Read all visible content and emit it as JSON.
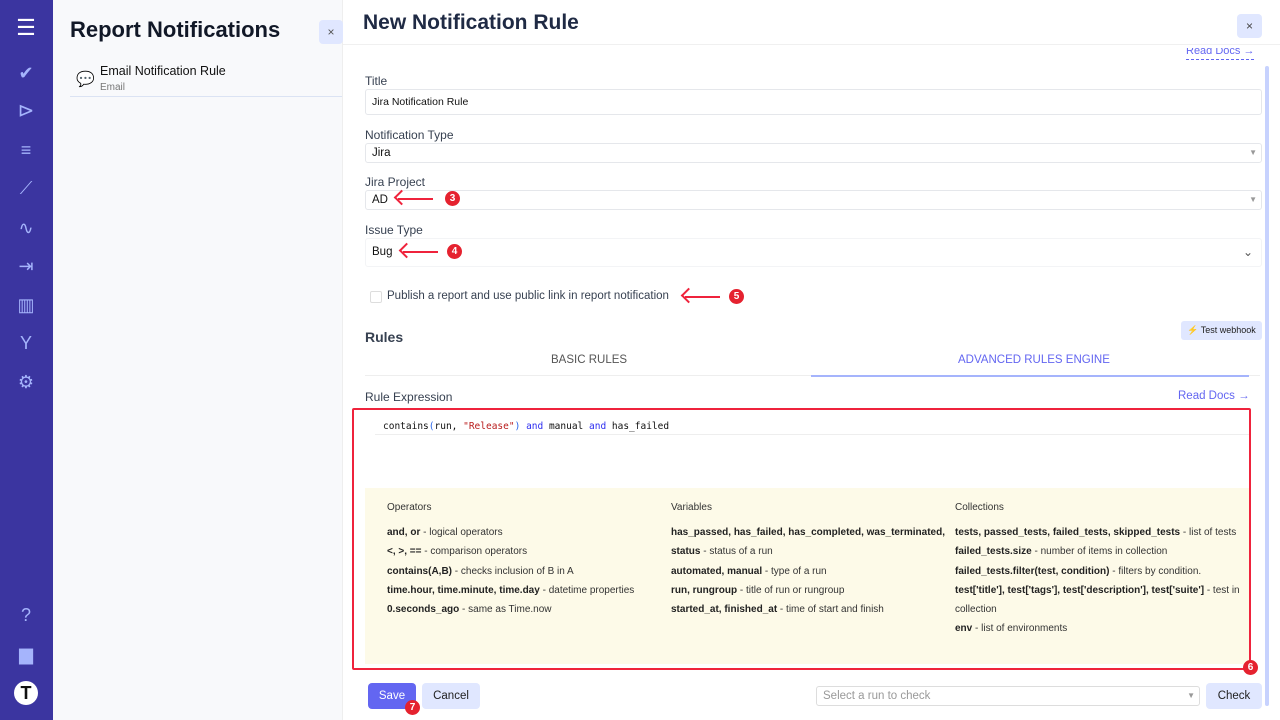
{
  "sidebar": {
    "icons": [
      "menu-icon",
      "check-icon",
      "play-icon",
      "list-check-icon",
      "steps-icon",
      "pulse-icon",
      "import-icon",
      "chart-icon",
      "branch-icon",
      "gear-icon",
      "help-icon",
      "folder-icon",
      "logo-icon"
    ]
  },
  "left_panel": {
    "title": "Report Notifications",
    "close": "×",
    "items": [
      {
        "title": "Email Notification Rule",
        "subtitle": "Email"
      }
    ]
  },
  "header": {
    "title": "New Notification Rule",
    "close": "×",
    "read_docs_top": "Read Docs →"
  },
  "form": {
    "title_label": "Title",
    "title_value": "Jira Notification Rule",
    "type_label": "Notification Type",
    "type_value": "Jira",
    "project_label": "Jira Project",
    "project_value": "AD",
    "issue_label": "Issue Type",
    "issue_value": "Bug",
    "publish_label": "Publish a report and use public link in report notification",
    "publish_checked": false
  },
  "rules": {
    "title": "Rules",
    "test_webhook": "Test webhook",
    "tabs": [
      {
        "label": "BASIC RULES",
        "active": false
      },
      {
        "label": "ADVANCED RULES ENGINE",
        "active": true
      }
    ],
    "expression_label": "Rule Expression",
    "read_docs": "Read Docs →",
    "code": {
      "fn": "contains",
      "p1": "(",
      "arg": "run, ",
      "str": "\"Release\"",
      "p2": ")",
      "and1": "and",
      "manual": " manual ",
      "and2": "and",
      "rest": " has_failed"
    }
  },
  "help": {
    "operators": {
      "title": "Operators",
      "rows": [
        [
          "and, or",
          " - logical operators"
        ],
        [
          "<, >, ==",
          " - comparison operators"
        ],
        [
          "contains(A,B)",
          " - checks inclusion of B in A"
        ],
        [
          "time.hour, time.minute, time.day",
          " - datetime properties"
        ],
        [
          "0.seconds_ago",
          " - same as Time.now"
        ]
      ]
    },
    "variables": {
      "title": "Variables",
      "rows": [
        [
          "has_passed, has_failed, has_completed, was_terminated,",
          ""
        ],
        [
          "status",
          " - status of a run"
        ],
        [
          "automated, manual",
          " - type of a run"
        ],
        [
          "run, rungroup",
          " - title of run or rungroup"
        ],
        [
          "started_at, finished_at",
          " - time of start and finish"
        ]
      ]
    },
    "collections": {
      "title": "Collections",
      "rows": [
        [
          "tests, passed_tests, failed_tests, skipped_tests",
          " - list of tests"
        ],
        [
          "failed_tests.size",
          " - number of items in collection"
        ],
        [
          "failed_tests.filter(test, condition)",
          " - filters by condition."
        ],
        [
          "test['title'], test['tags'], test['description'], test['suite']",
          " - test in collection"
        ],
        [
          "env",
          " - list of environments"
        ]
      ]
    }
  },
  "footer": {
    "save": "Save",
    "cancel": "Cancel",
    "run_placeholder": "Select a run to check",
    "check": "Check"
  },
  "annotations": [
    "3",
    "4",
    "5",
    "6",
    "7"
  ],
  "colors": {
    "sidebar": "#3b35a0",
    "accent": "#6366f1",
    "annotation": "#ef233c",
    "help_bg": "#fdfae8"
  }
}
